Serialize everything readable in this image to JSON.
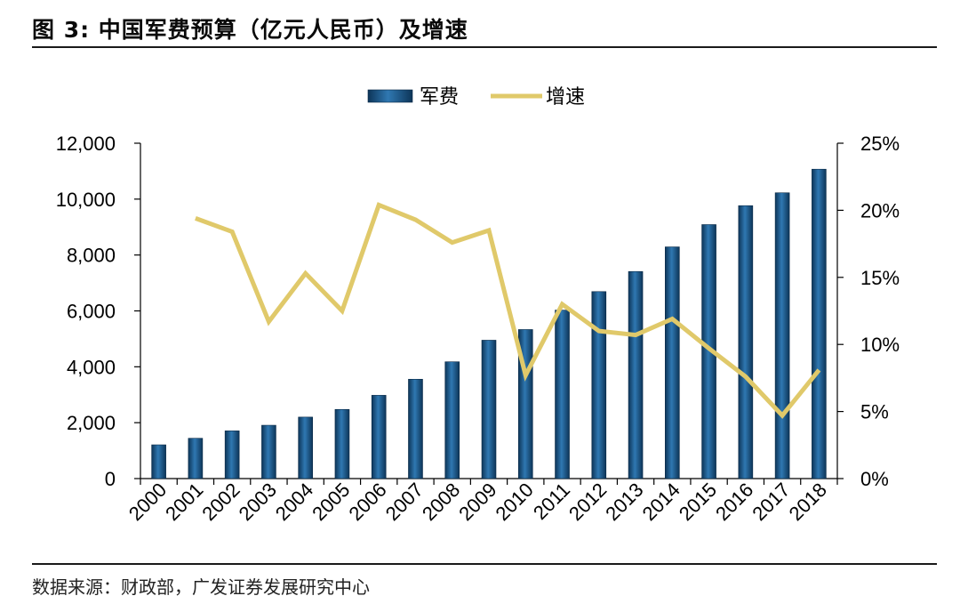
{
  "title": "图 3:  中国军费预算（亿元人民币）及增速",
  "source": "数据来源：财政部，广发证券发展研究中心",
  "chart_data": {
    "type": "bar",
    "categories": [
      "2000",
      "2001",
      "2002",
      "2003",
      "2004",
      "2005",
      "2006",
      "2007",
      "2008",
      "2009",
      "2010",
      "2011",
      "2012",
      "2013",
      "2014",
      "2015",
      "2016",
      "2017",
      "2018"
    ],
    "series": [
      {
        "name": "军费",
        "type": "bar",
        "axis": "left",
        "color": "#1f5c8f",
        "values": [
          1208,
          1442,
          1708,
          1908,
          2200,
          2475,
          2980,
          3555,
          4179,
          4951,
          5333,
          6028,
          6691,
          7410,
          8290,
          9088,
          9766,
          10226,
          11070
        ]
      },
      {
        "name": "增速",
        "type": "line",
        "axis": "right",
        "color": "#e0c96a",
        "values": [
          null,
          19.4,
          18.4,
          11.7,
          15.3,
          12.5,
          20.4,
          19.3,
          17.6,
          18.5,
          7.7,
          13.0,
          11.0,
          10.7,
          11.9,
          9.7,
          7.6,
          4.7,
          8.1
        ]
      }
    ],
    "y_left": {
      "min": 0,
      "max": 12000,
      "ticks": [
        "0",
        "2,000",
        "4,000",
        "6,000",
        "8,000",
        "10,000",
        "12,000"
      ]
    },
    "y_right": {
      "min": 0,
      "max": 25,
      "ticks": [
        "0%",
        "5%",
        "10%",
        "15%",
        "20%",
        "25%"
      ]
    },
    "legend": [
      "军费",
      "增速"
    ],
    "legend_position": "top-center"
  }
}
